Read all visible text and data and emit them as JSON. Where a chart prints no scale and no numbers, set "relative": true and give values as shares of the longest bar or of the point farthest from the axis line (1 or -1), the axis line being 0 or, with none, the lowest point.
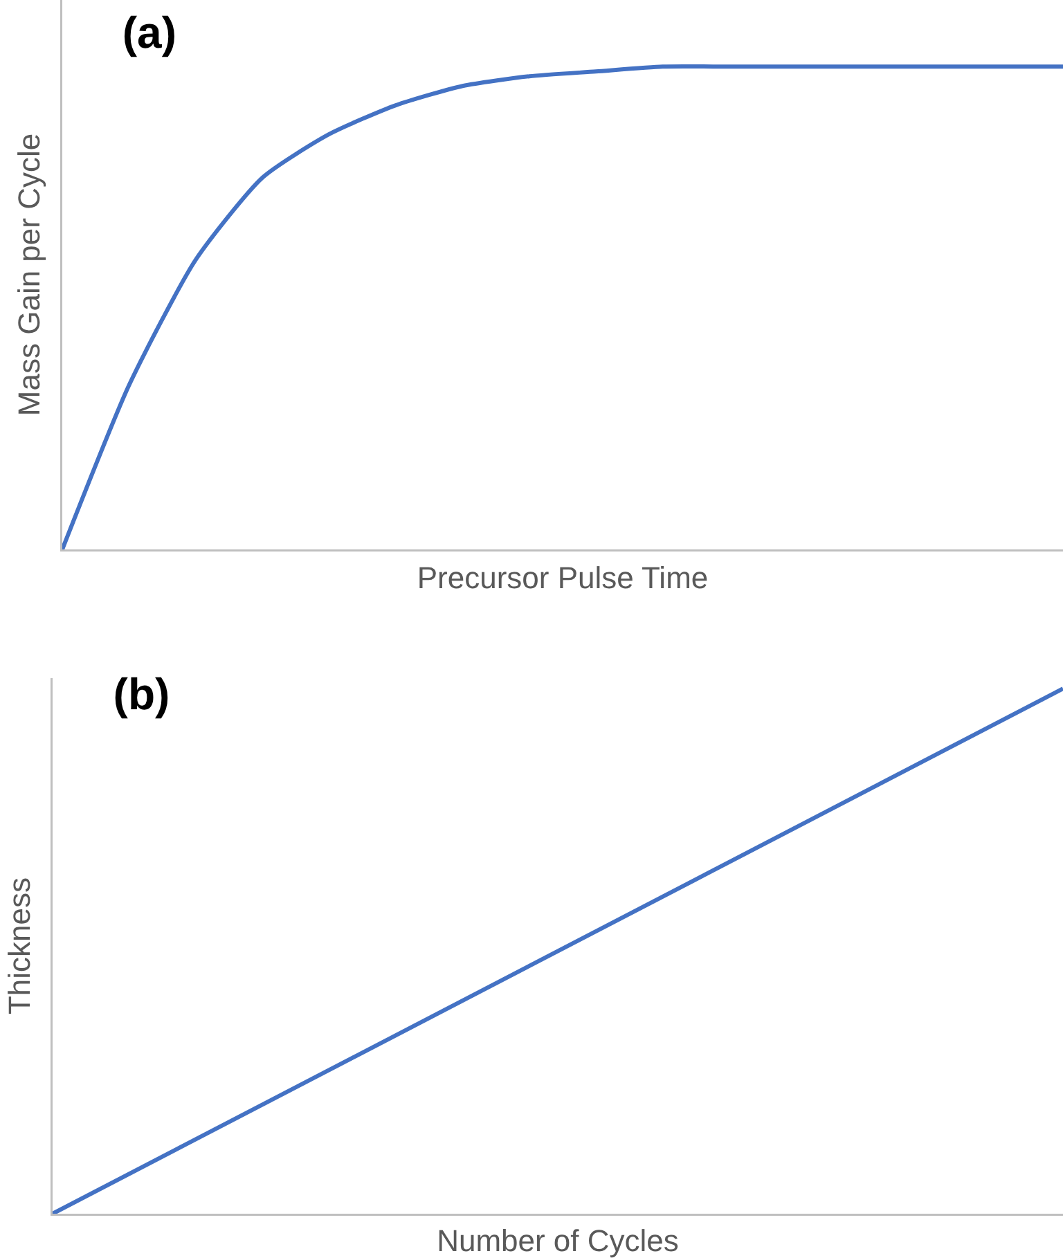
{
  "chart_data": [
    {
      "type": "line",
      "title": "(a)",
      "xlabel": "Precursor Pulse Time",
      "ylabel": "Mass Gain per Cycle",
      "relative": true,
      "categories": [
        null,
        null,
        null,
        null,
        null,
        null,
        null,
        null,
        null,
        null,
        null,
        null,
        null,
        null,
        null,
        null
      ],
      "series": [
        {
          "color": "#4472c4",
          "values": [
            0,
            0.34,
            0.6,
            0.77,
            0.86,
            0.92,
            0.96,
            0.98,
            0.99,
            1,
            1,
            1,
            1,
            1,
            1,
            1
          ]
        }
      ]
    },
    {
      "type": "line",
      "title": "(b)",
      "xlabel": "Number of Cycles",
      "ylabel": "Thickness",
      "relative": true,
      "categories": [
        null,
        null
      ],
      "series": [
        {
          "color": "#4472c4",
          "values": [
            0,
            1
          ]
        }
      ]
    }
  ]
}
